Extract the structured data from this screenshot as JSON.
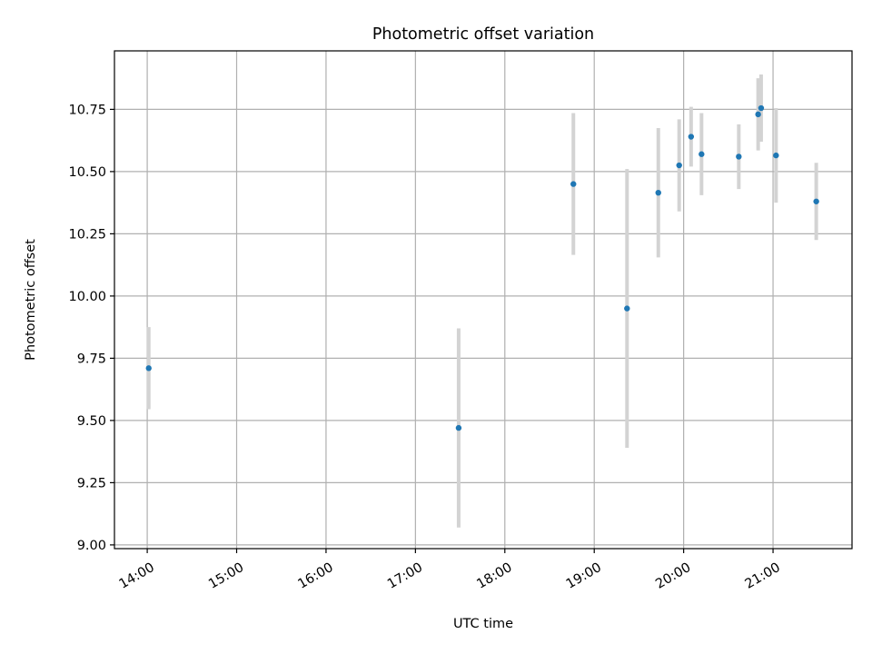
{
  "chart_data": {
    "type": "scatter",
    "title": "Photometric offset variation",
    "xlabel": "UTC time",
    "ylabel": "Photometric offset",
    "xlim": [
      "13:38",
      "21:53"
    ],
    "ylim": [
      8.985,
      10.985
    ],
    "grid": true,
    "x_ticks": [
      "14:00",
      "15:00",
      "16:00",
      "17:00",
      "18:00",
      "19:00",
      "20:00",
      "21:00"
    ],
    "y_ticks": [
      "9.00",
      "9.25",
      "9.50",
      "9.75",
      "10.00",
      "10.25",
      "10.50",
      "10.75"
    ],
    "marker_color": "#1f77b4",
    "errorbar_color": "#d3d3d3",
    "points": [
      {
        "x": "14:01",
        "y": 9.71,
        "err": 0.165
      },
      {
        "x": "17:29",
        "y": 9.47,
        "err": 0.4
      },
      {
        "x": "18:46",
        "y": 10.45,
        "err": 0.285
      },
      {
        "x": "19:22",
        "y": 9.95,
        "err": 0.56
      },
      {
        "x": "19:43",
        "y": 10.415,
        "err": 0.26
      },
      {
        "x": "19:57",
        "y": 10.525,
        "err": 0.185
      },
      {
        "x": "20:05",
        "y": 10.64,
        "err": 0.12
      },
      {
        "x": "20:12",
        "y": 10.57,
        "err": 0.165
      },
      {
        "x": "20:37",
        "y": 10.56,
        "err": 0.13
      },
      {
        "x": "20:50",
        "y": 10.73,
        "err": 0.145
      },
      {
        "x": "20:52",
        "y": 10.755,
        "err": 0.135
      },
      {
        "x": "21:02",
        "y": 10.565,
        "err": 0.19
      },
      {
        "x": "21:29",
        "y": 10.38,
        "err": 0.155
      }
    ]
  }
}
